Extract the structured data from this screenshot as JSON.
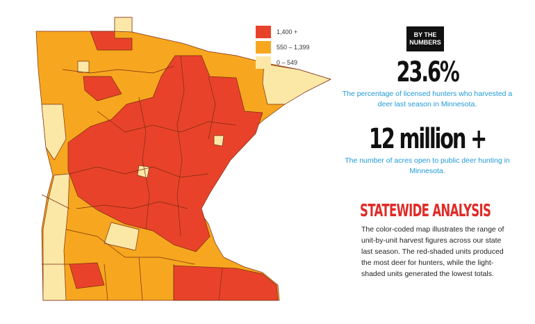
{
  "legend": [
    {
      "label": "1,400 +",
      "color": "#e8432a"
    },
    {
      "label": "550 – 1,399",
      "color": "#f6a71f"
    },
    {
      "label": "0 – 549",
      "color": "#fbe8a6"
    }
  ],
  "badge": "BY THE NUMBERS",
  "stats": [
    {
      "value": "23.6%",
      "caption": "The percentage of licensed hunters who harvested a deer last season in Minnesota."
    },
    {
      "value": "12 million +",
      "caption": "The number of acres open to public deer hunting in Minnesota."
    }
  ],
  "analysis": {
    "title": "STATEWIDE ANALYSIS",
    "text": "The color-coded map illustrates the range of unit-by-unit harvest figures across our state last season. The red-shaded units produced the most deer for hunters, while the light-shaded units generated the lowest totals."
  }
}
